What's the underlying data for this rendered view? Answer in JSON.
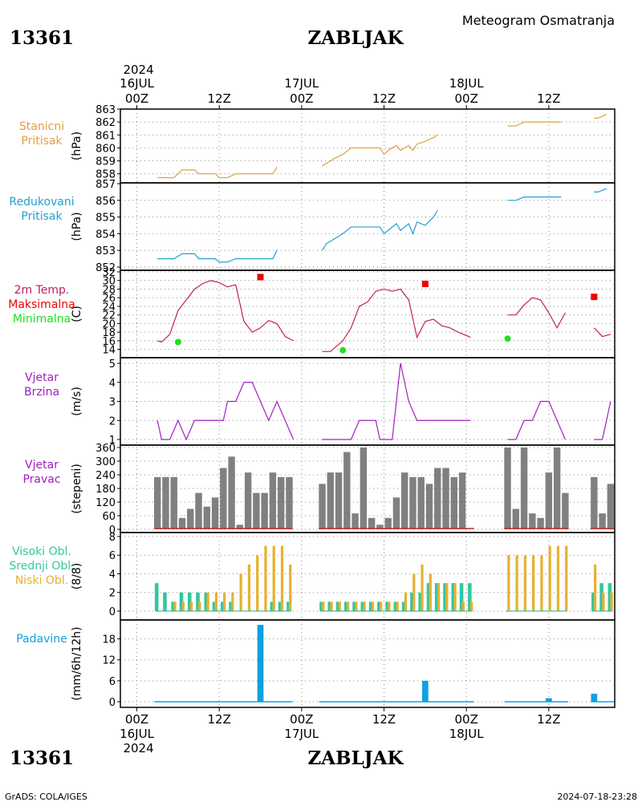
{
  "header": {
    "station_id": "13361",
    "station_name": "ZABLJAK",
    "meteogram_title": "Meteogram Osmatranja",
    "year": "2024",
    "footer_left": "GrADS: COLA/IGES",
    "footer_right": "2024-07-18-23:28"
  },
  "time_axis": {
    "top_ticks": [
      "00Z",
      "12Z",
      "00Z",
      "12Z",
      "00Z",
      "12Z"
    ],
    "bottom_ticks": [
      "00Z",
      "12Z",
      "00Z",
      "12Z",
      "00Z",
      "12Z"
    ],
    "day_labels": [
      "16JUL",
      "17JUL",
      "18JUL"
    ],
    "year_label": "2024",
    "hours_range": [
      -2,
      58
    ],
    "tick_hours": [
      0,
      10,
      20,
      30,
      40,
      50
    ],
    "day_hours": [
      0,
      20,
      40
    ]
  },
  "colors": {
    "pressure": "#e0a040",
    "reduced": "#20a0d0",
    "temp": "#c0205a",
    "max": "#ee0000",
    "min": "#20e020",
    "wind": "#a020c0",
    "direction": "#808080",
    "dir_base": "#c03030",
    "cloud_high": "#30c8a0",
    "cloud_low": "#e8b030",
    "precip": "#10a0e0"
  },
  "chart_data": [
    {
      "type": "line",
      "panel": "station-pressure",
      "label_lines": [
        "Stanicni",
        "Pritisak"
      ],
      "ylabel": "(hPa)",
      "yticks": [
        858,
        859,
        860,
        861,
        862,
        863
      ],
      "ylim": [
        857.3,
        863
      ],
      "series": [
        {
          "segments": [
            [
              [
                2.5,
                857.7
              ],
              [
                4.5,
                857.7
              ],
              [
                5.5,
                858.3
              ],
              [
                7,
                858.3
              ],
              [
                7.5,
                858
              ],
              [
                9.5,
                858
              ],
              [
                10,
                857.7
              ],
              [
                11,
                857.7
              ],
              [
                12,
                858
              ],
              [
                16.5,
                858
              ],
              [
                17,
                858.5
              ]
            ],
            [
              [
                22.5,
                858.6
              ],
              [
                23,
                858.8
              ],
              [
                24,
                859.2
              ],
              [
                25,
                859.5
              ],
              [
                26,
                860
              ],
              [
                29.5,
                860
              ],
              [
                30,
                859.5
              ],
              [
                30.5,
                859.8
              ],
              [
                31.5,
                860.2
              ],
              [
                32,
                859.8
              ],
              [
                33,
                860.2
              ],
              [
                33.5,
                859.8
              ],
              [
                34,
                860.3
              ],
              [
                35,
                860.5
              ],
              [
                36,
                860.8
              ],
              [
                36.5,
                861
              ]
            ],
            [
              [
                45,
                861.7
              ],
              [
                46,
                861.7
              ],
              [
                47,
                862
              ],
              [
                51.5,
                862
              ]
            ],
            [
              [
                55.5,
                862.3
              ],
              [
                56,
                862.3
              ],
              [
                57,
                862.6
              ]
            ]
          ]
        }
      ]
    },
    {
      "type": "line",
      "panel": "reduced-pressure",
      "label_lines": [
        "Redukovani",
        "Pritisak"
      ],
      "ylabel": "(hPa)",
      "yticks": [
        852,
        853,
        854,
        855,
        856,
        857
      ],
      "ylim": [
        852,
        857
      ],
      "series": [
        {
          "segments": [
            [
              [
                2.5,
                852.5
              ],
              [
                4.5,
                852.5
              ],
              [
                5.5,
                852.8
              ],
              [
                7,
                852.8
              ],
              [
                7.5,
                852.5
              ],
              [
                9.5,
                852.5
              ],
              [
                10,
                852.3
              ],
              [
                11,
                852.3
              ],
              [
                12,
                852.5
              ],
              [
                16.5,
                852.5
              ],
              [
                17,
                853
              ]
            ],
            [
              [
                22.5,
                853
              ],
              [
                23,
                853.4
              ],
              [
                24,
                853.7
              ],
              [
                25,
                854
              ],
              [
                26,
                854.4
              ],
              [
                29.5,
                854.4
              ],
              [
                30,
                854
              ],
              [
                30.5,
                854.2
              ],
              [
                31.5,
                854.6
              ],
              [
                32,
                854.2
              ],
              [
                33,
                854.6
              ],
              [
                33.5,
                854
              ],
              [
                34,
                854.7
              ],
              [
                35,
                854.5
              ],
              [
                36,
                855
              ],
              [
                36.5,
                855.4
              ]
            ],
            [
              [
                45,
                856
              ],
              [
                46,
                856
              ],
              [
                47,
                856.2
              ],
              [
                51.5,
                856.2
              ]
            ],
            [
              [
                55.5,
                856.5
              ],
              [
                56,
                856.5
              ],
              [
                57,
                856.7
              ]
            ]
          ]
        }
      ]
    },
    {
      "type": "line",
      "panel": "temperature",
      "label_lines": [
        "2m Temp.",
        "Maksimalna",
        "Minimalna"
      ],
      "ylabel": "(C)",
      "yticks": [
        14,
        16,
        18,
        20,
        22,
        24,
        26,
        28,
        30,
        32
      ],
      "ylim": [
        13,
        32
      ],
      "series": [
        {
          "name": "2m Temp.",
          "segments": [
            [
              [
                2.5,
                16
              ],
              [
                3,
                15.7
              ],
              [
                4,
                17.5
              ],
              [
                5,
                23
              ],
              [
                6,
                25.5
              ],
              [
                7,
                28
              ],
              [
                8,
                29.3
              ],
              [
                9,
                30
              ],
              [
                10,
                29.5
              ],
              [
                11,
                28.5
              ],
              [
                12,
                29
              ],
              [
                13,
                20.5
              ],
              [
                14,
                18
              ],
              [
                15,
                19
              ],
              [
                16,
                20.7
              ],
              [
                17,
                20
              ],
              [
                18,
                17
              ],
              [
                19,
                16
              ]
            ],
            [
              [
                22.5,
                13.5
              ],
              [
                23.5,
                13.5
              ],
              [
                25,
                16
              ],
              [
                26,
                19
              ],
              [
                27,
                24
              ],
              [
                28,
                25
              ],
              [
                29,
                27.5
              ],
              [
                30,
                28
              ],
              [
                31,
                27.5
              ],
              [
                32,
                28
              ],
              [
                33,
                25.5
              ],
              [
                34,
                16.8
              ],
              [
                35,
                20.5
              ],
              [
                36,
                21
              ],
              [
                37,
                19.5
              ],
              [
                38,
                19
              ],
              [
                39,
                18
              ],
              [
                40.5,
                16.8
              ]
            ],
            [
              [
                45,
                22
              ],
              [
                46,
                22
              ],
              [
                47,
                24.3
              ],
              [
                48,
                26
              ],
              [
                49,
                25.5
              ],
              [
                50,
                22.5
              ],
              [
                51,
                19
              ],
              [
                52,
                22.5
              ]
            ],
            [
              [
                55.5,
                19
              ],
              [
                56.5,
                17
              ],
              [
                57.5,
                17.5
              ]
            ]
          ]
        },
        {
          "name": "Maksimalna",
          "type": "scatter",
          "points": [
            [
              15,
              30.8
            ],
            [
              35,
              29.2
            ],
            [
              55.5,
              26.2
            ]
          ]
        },
        {
          "name": "Minimalna",
          "type": "scatter",
          "points": [
            [
              5,
              15.7
            ],
            [
              25,
              13.8
            ],
            [
              45,
              16.5
            ]
          ]
        }
      ]
    },
    {
      "type": "line",
      "panel": "wind-speed",
      "label_lines": [
        "Vjetar",
        "Brzina"
      ],
      "ylabel": "(m/s)",
      "yticks": [
        1,
        2,
        3,
        4,
        5
      ],
      "ylim": [
        1,
        5
      ],
      "series": [
        {
          "segments": [
            [
              [
                2.5,
                2
              ],
              [
                3,
                1
              ],
              [
                4,
                1
              ],
              [
                5,
                2
              ],
              [
                6,
                1
              ],
              [
                7,
                2
              ],
              [
                10,
                2
              ],
              [
                10.5,
                2
              ],
              [
                11,
                3
              ],
              [
                12,
                3
              ],
              [
                13,
                4
              ],
              [
                14,
                4
              ],
              [
                15,
                3
              ],
              [
                16,
                2
              ],
              [
                17,
                3
              ],
              [
                18,
                2
              ],
              [
                19,
                1
              ]
            ],
            [
              [
                22.5,
                1
              ],
              [
                26,
                1
              ],
              [
                27,
                2
              ],
              [
                29,
                2
              ],
              [
                29.5,
                1
              ],
              [
                30,
                1
              ],
              [
                31,
                1
              ],
              [
                32,
                5
              ],
              [
                33,
                3
              ],
              [
                34,
                2
              ],
              [
                39,
                2
              ],
              [
                40.5,
                2
              ]
            ],
            [
              [
                45,
                1
              ],
              [
                46,
                1
              ],
              [
                47,
                2
              ],
              [
                48,
                2
              ],
              [
                49,
                3
              ],
              [
                50,
                3
              ],
              [
                51,
                2
              ],
              [
                52,
                1
              ]
            ],
            [
              [
                55.5,
                1
              ],
              [
                56.5,
                1
              ],
              [
                57.5,
                3
              ]
            ]
          ]
        }
      ]
    },
    {
      "type": "bar",
      "panel": "wind-direction",
      "label_lines": [
        "Vjetar",
        "Pravac"
      ],
      "ylabel": "(stepeni)",
      "yticks": [
        0,
        60,
        120,
        180,
        240,
        300,
        360
      ],
      "ylim": [
        0,
        360
      ],
      "x": [
        2.5,
        3.5,
        4.5,
        5.5,
        6.5,
        7.5,
        8.5,
        9.5,
        10.5,
        11.5,
        12.5,
        13.5,
        14.5,
        15.5,
        16.5,
        17.5,
        18.5,
        22.5,
        23.5,
        24.5,
        25.5,
        26.5,
        27.5,
        28.5,
        29.5,
        30.5,
        31.5,
        32.5,
        33.5,
        34.5,
        35.5,
        36.5,
        37.5,
        38.5,
        39.5,
        40.5,
        45,
        46,
        47,
        48,
        49,
        50,
        51,
        52,
        55.5,
        56.5,
        57.5
      ],
      "values": [
        230,
        230,
        230,
        50,
        90,
        160,
        100,
        140,
        270,
        320,
        20,
        250,
        160,
        160,
        250,
        230,
        230,
        200,
        250,
        250,
        340,
        70,
        360,
        50,
        20,
        50,
        140,
        250,
        230,
        230,
        200,
        270,
        270,
        230,
        250,
        0,
        360,
        90,
        360,
        70,
        50,
        250,
        360,
        160,
        230,
        70,
        200
      ]
    },
    {
      "type": "bar",
      "panel": "clouds",
      "label_lines": [
        "Visoki Obl.",
        "Srednji Obl.",
        "Niski Obl."
      ],
      "ylabel": "(8/8)",
      "yticks": [
        0,
        2,
        4,
        6,
        8
      ],
      "ylim": [
        0,
        8.6
      ],
      "x": [
        2.5,
        3.5,
        4.5,
        5.5,
        6.5,
        7.5,
        8.5,
        9.5,
        10.5,
        11.5,
        12.5,
        13.5,
        14.5,
        15.5,
        16.5,
        17.5,
        18.5,
        22.5,
        23.5,
        24.5,
        25.5,
        26.5,
        27.5,
        28.5,
        29.5,
        30.5,
        31.5,
        32.5,
        33.5,
        34.5,
        35.5,
        36.5,
        37.5,
        38.5,
        39.5,
        40.5,
        45,
        46,
        47,
        48,
        49,
        50,
        51,
        52,
        55.5,
        56.5,
        57.5
      ],
      "series": [
        {
          "name": "Visoki Obl.",
          "values": [
            3,
            2,
            1,
            2,
            2,
            2,
            2,
            1,
            1,
            1,
            0,
            0,
            0,
            0,
            1,
            1,
            1,
            1,
            1,
            1,
            1,
            1,
            1,
            1,
            1,
            1,
            1,
            1,
            2,
            2,
            3,
            3,
            3,
            3,
            3,
            3,
            0,
            0,
            0,
            0,
            0,
            0,
            0,
            0,
            2,
            3,
            3
          ]
        },
        {
          "name": "Niski Obl.",
          "values": [
            0,
            0,
            1,
            1,
            1,
            1,
            2,
            2,
            2,
            2,
            4,
            5,
            6,
            7,
            7,
            7,
            5,
            1,
            1,
            1,
            1,
            1,
            1,
            1,
            1,
            1,
            1,
            2,
            4,
            5,
            4,
            3,
            3,
            3,
            1,
            1,
            6,
            6,
            6,
            6,
            6,
            7,
            7,
            7,
            5,
            2,
            2
          ]
        }
      ]
    },
    {
      "type": "bar",
      "panel": "precipitation",
      "label_lines": [
        "Padavine"
      ],
      "ylabel": "(mm/6h/12h)",
      "yticks": [
        0,
        6,
        12,
        18
      ],
      "ylim": [
        0,
        22.5
      ],
      "x": [
        15,
        35,
        50,
        55.5
      ],
      "values": [
        22,
        6,
        1,
        2.3
      ]
    }
  ]
}
